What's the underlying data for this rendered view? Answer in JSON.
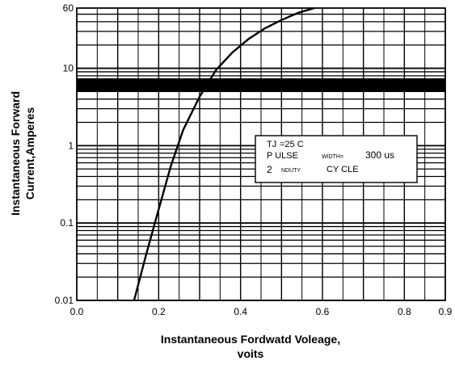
{
  "chart_data": {
    "type": "line",
    "title": "",
    "xlabel_line1": "Instantaneous Fordwatd Voleage,",
    "xlabel_line2": "voits",
    "ylabel_line1": "Instantaneous Forward",
    "ylabel_line2": "Current,Amperes",
    "xscale": "linear",
    "yscale": "log",
    "xlim": [
      0.0,
      0.9
    ],
    "ylim": [
      0.01,
      60
    ],
    "grid": true,
    "legend": "none",
    "x_ticks": [
      "0.0",
      "0.2",
      "0.4",
      "0.6",
      "0.8",
      "0.9"
    ],
    "x_tick_values": [
      0.0,
      0.2,
      0.4,
      0.6,
      0.8,
      0.9
    ],
    "y_ticks": [
      "0.01",
      "0.1",
      "1",
      "10",
      "60"
    ],
    "y_tick_values": [
      0.01,
      0.1,
      1,
      10,
      60
    ],
    "series": [
      {
        "x": [
          0.14,
          0.17,
          0.2,
          0.23,
          0.26,
          0.3,
          0.34,
          0.38,
          0.42,
          0.46,
          0.5,
          0.54,
          0.58
        ],
        "y": [
          0.01,
          0.04,
          0.15,
          0.55,
          1.6,
          4.3,
          9.5,
          16,
          24,
          33,
          42,
          52,
          60
        ]
      }
    ],
    "annotation": {
      "line1_a": "TJ",
      "line1_b": "=25 C",
      "line2_a": "P ULSE",
      "line2_b": "WIDTH=",
      "line2_c": "300 us",
      "line3_a": "2",
      "line3_b": "NDUTY",
      "line3_c": "CY CLE"
    }
  },
  "colors": {
    "ink": "#000000",
    "background": "#ffffff"
  }
}
